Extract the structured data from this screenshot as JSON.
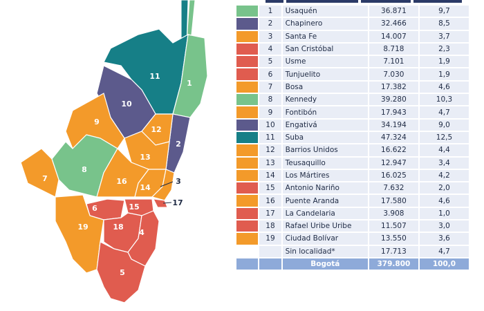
{
  "chart_data": {
    "type": "table",
    "title": "",
    "colors": {
      "green": "#78c38b",
      "purple": "#5c5a8c",
      "orange": "#f39a2a",
      "red": "#e05c4f",
      "teal": "#167f87",
      "none": "#ffffff"
    },
    "rows": [
      {
        "n": "1",
        "name": "Usaquén",
        "value": "36.871",
        "pct": "9,7",
        "color": "green"
      },
      {
        "n": "2",
        "name": "Chapinero",
        "value": "32.466",
        "pct": "8,5",
        "color": "purple"
      },
      {
        "n": "3",
        "name": "Santa Fe",
        "value": "14.007",
        "pct": "3,7",
        "color": "orange"
      },
      {
        "n": "4",
        "name": "San Cristóbal",
        "value": "8.718",
        "pct": "2,3",
        "color": "red"
      },
      {
        "n": "5",
        "name": "Usme",
        "value": "7.101",
        "pct": "1,9",
        "color": "red"
      },
      {
        "n": "6",
        "name": "Tunjuelito",
        "value": "7.030",
        "pct": "1,9",
        "color": "red"
      },
      {
        "n": "7",
        "name": "Bosa",
        "value": "17.382",
        "pct": "4,6",
        "color": "orange"
      },
      {
        "n": "8",
        "name": "Kennedy",
        "value": "39.280",
        "pct": "10,3",
        "color": "green"
      },
      {
        "n": "9",
        "name": "Fontibón",
        "value": "17.943",
        "pct": "4,7",
        "color": "orange"
      },
      {
        "n": "10",
        "name": "Engativá",
        "value": "34.194",
        "pct": "9,0",
        "color": "purple"
      },
      {
        "n": "11",
        "name": "Suba",
        "value": "47.324",
        "pct": "12,5",
        "color": "teal"
      },
      {
        "n": "12",
        "name": "Barrios Unidos",
        "value": "16.622",
        "pct": "4,4",
        "color": "orange"
      },
      {
        "n": "13",
        "name": "Teusaquillo",
        "value": "12.947",
        "pct": "3,4",
        "color": "orange"
      },
      {
        "n": "14",
        "name": "Los Mártires",
        "value": "16.025",
        "pct": "4,2",
        "color": "orange"
      },
      {
        "n": "15",
        "name": "Antonio Nariño",
        "value": "7.632",
        "pct": "2,0",
        "color": "red"
      },
      {
        "n": "16",
        "name": "Puente Aranda",
        "value": "17.580",
        "pct": "4,6",
        "color": "orange"
      },
      {
        "n": "17",
        "name": "La Candelaria",
        "value": "3.908",
        "pct": "1,0",
        "color": "red"
      },
      {
        "n": "18",
        "name": "Rafael Uribe Uribe",
        "value": "11.507",
        "pct": "3,0",
        "color": "red"
      },
      {
        "n": "19",
        "name": "Ciudad Bolívar",
        "value": "13.550",
        "pct": "3,6",
        "color": "orange"
      },
      {
        "n": "",
        "name": "Sin localidad*",
        "value": "17.713",
        "pct": "4,7",
        "color": "none"
      }
    ],
    "total": {
      "name": "Bogotá",
      "value": "379.800",
      "pct": "100,0"
    }
  },
  "map_labels": [
    "1",
    "2",
    "3",
    "4",
    "5",
    "6",
    "7",
    "8",
    "9",
    "10",
    "11",
    "12",
    "13",
    "14",
    "15",
    "16",
    "17",
    "18",
    "19"
  ]
}
